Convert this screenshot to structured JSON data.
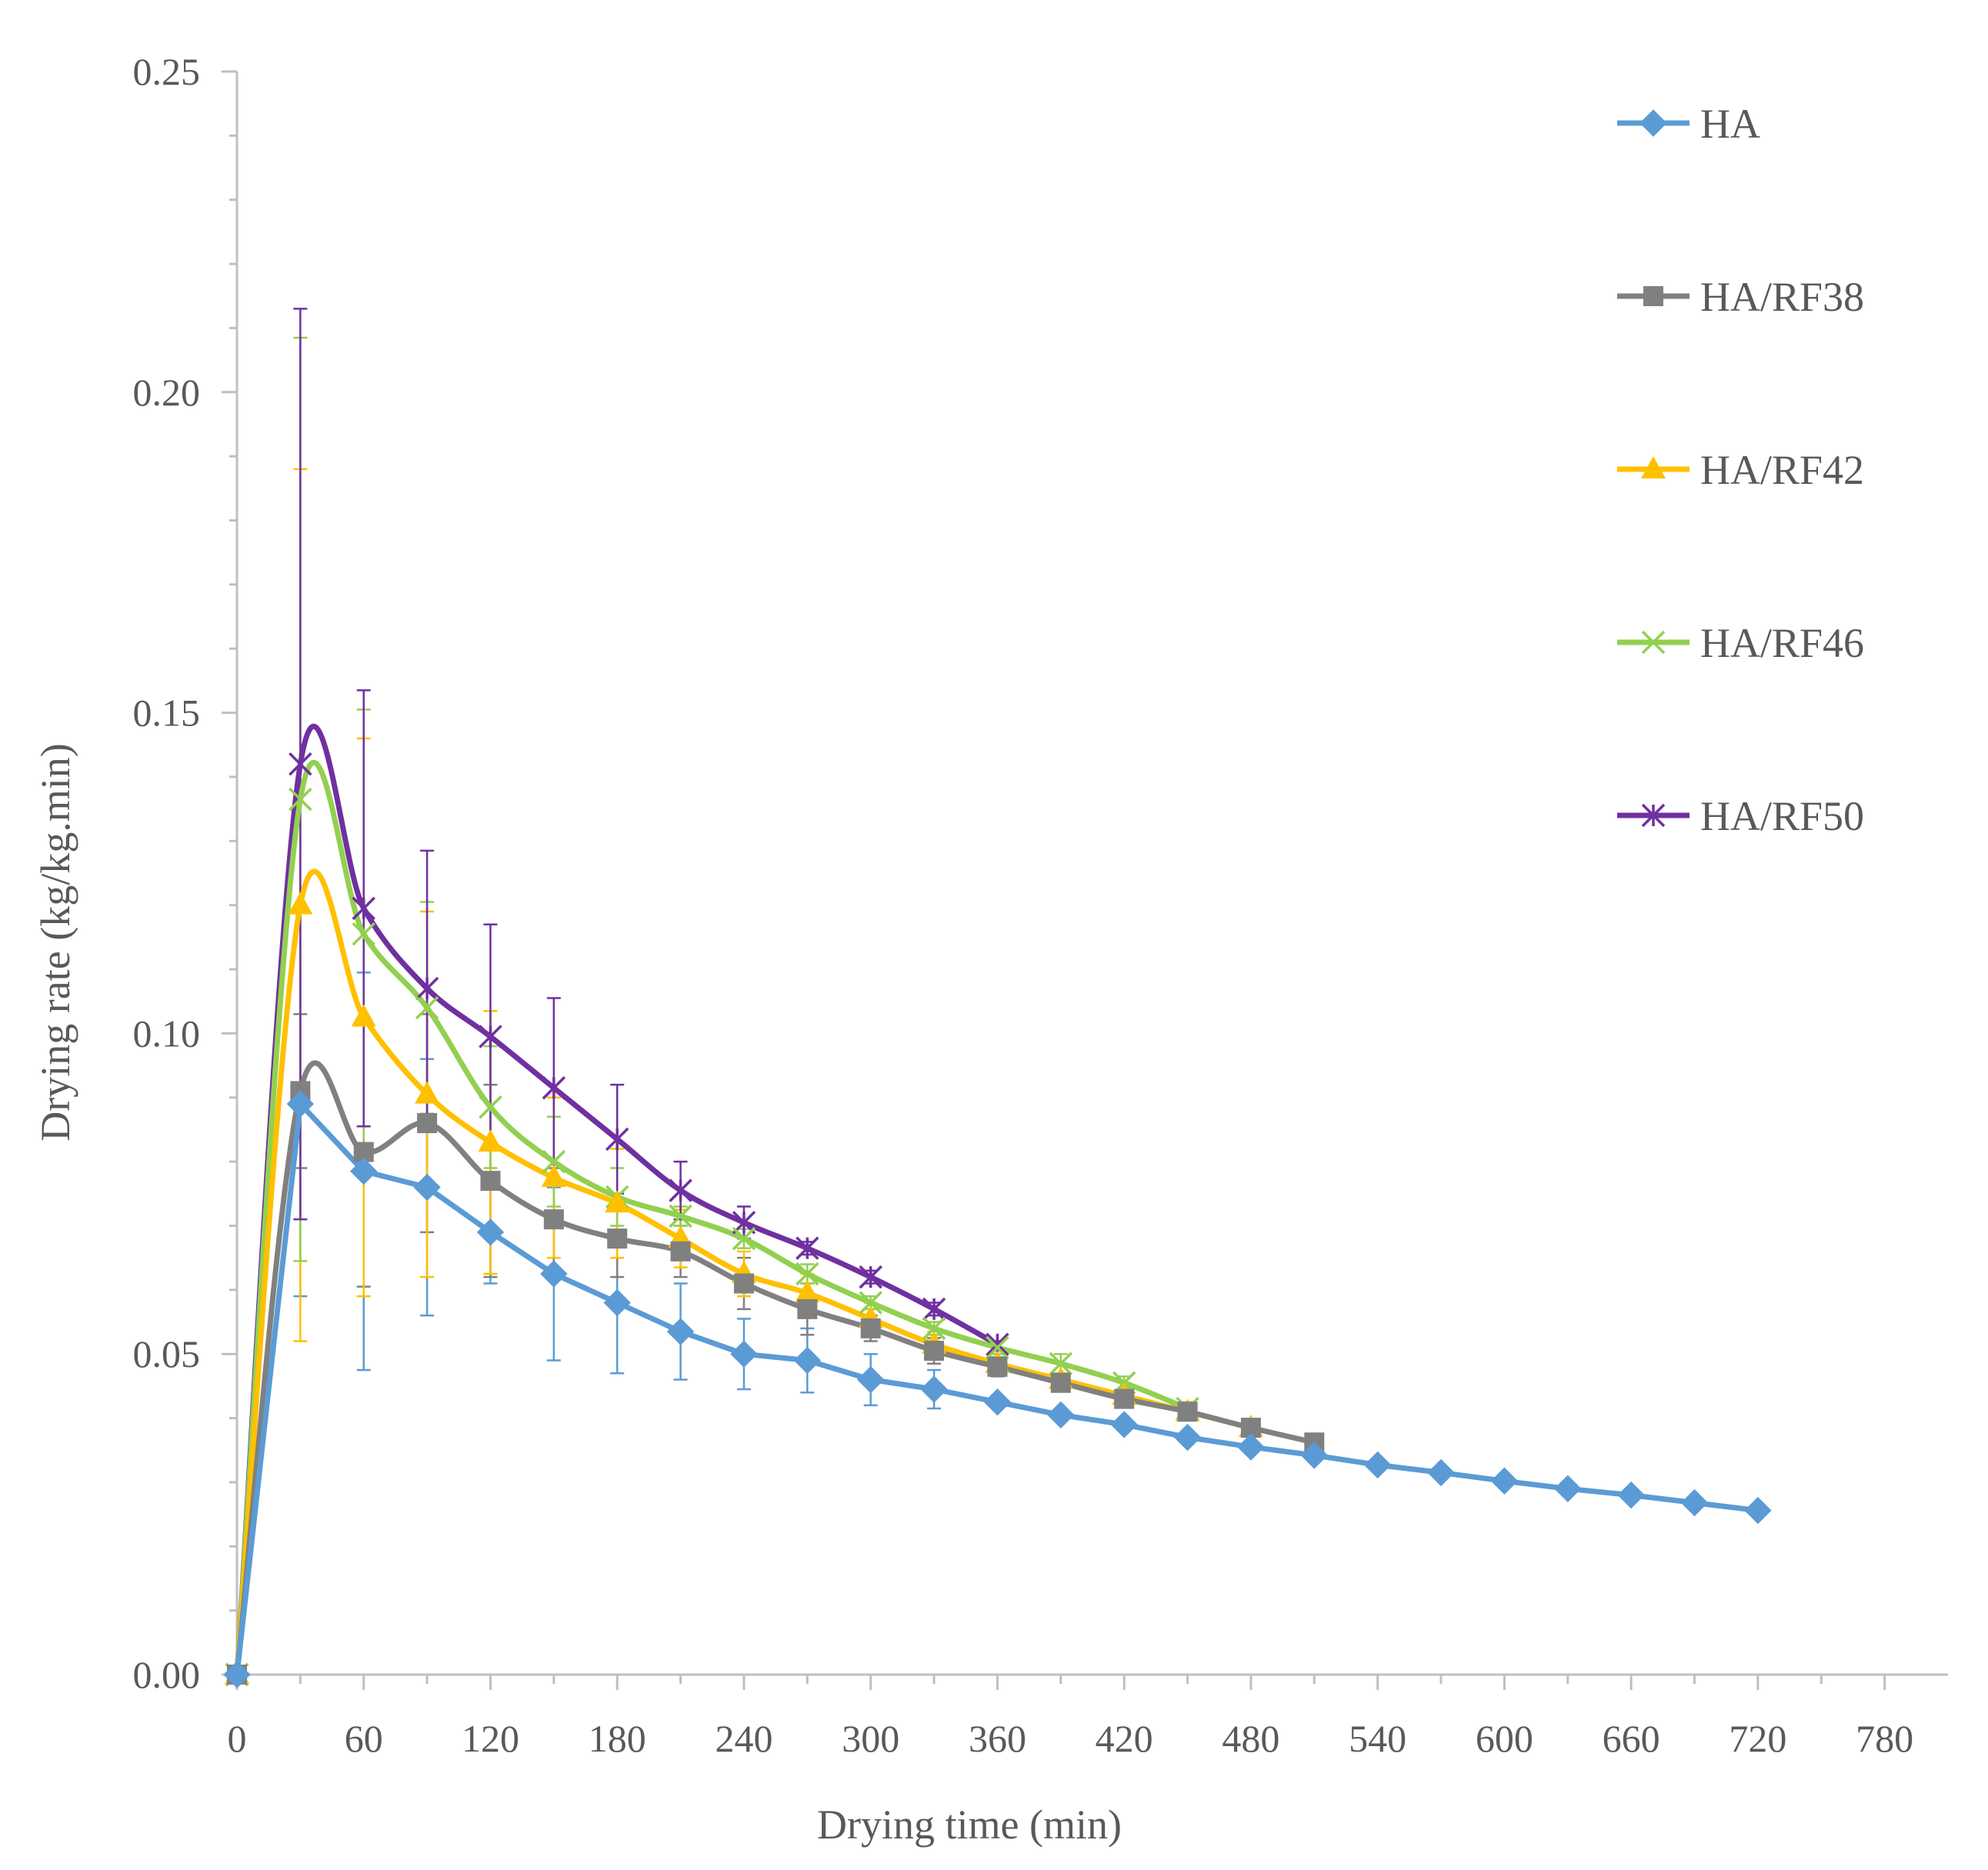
{
  "chart_data": {
    "type": "line",
    "title": "",
    "xlabel": "Drying time (min)",
    "ylabel": "Drying rate (kg/kg.min)",
    "xlim": [
      0,
      810
    ],
    "ylim": [
      0,
      0.25
    ],
    "xticks": [
      0,
      60,
      120,
      180,
      240,
      300,
      360,
      420,
      480,
      540,
      600,
      660,
      720,
      780
    ],
    "xtick_labels": [
      "0",
      "60",
      "120",
      "180",
      "240",
      "300",
      "360",
      "420",
      "480",
      "540",
      "600",
      "660",
      "720",
      "780"
    ],
    "yticks": [
      0,
      0.05,
      0.1,
      0.15,
      0.2,
      0.25
    ],
    "ytick_labels": [
      "0.00",
      "0.05",
      "0.10",
      "0.15",
      "0.20",
      "0.25"
    ],
    "grid": false,
    "legend_position": "top-right",
    "series": [
      {
        "name": "HA",
        "color": "#5b9bd5",
        "marker": "diamond",
        "smooth": false,
        "x": [
          0,
          30,
          60,
          90,
          120,
          150,
          180,
          210,
          240,
          270,
          300,
          330,
          360,
          390,
          420,
          450,
          480,
          510,
          540,
          570,
          600,
          630,
          660,
          690,
          720
        ],
        "y": [
          0.0,
          0.089,
          0.0785,
          0.076,
          0.069,
          0.0625,
          0.058,
          0.0535,
          0.05,
          0.049,
          0.046,
          0.0445,
          0.0425,
          0.0405,
          0.039,
          0.037,
          0.0355,
          0.0342,
          0.0327,
          0.0315,
          0.0302,
          0.029,
          0.028,
          0.0268,
          0.0256
        ],
        "err": [
          0,
          0.03,
          0.031,
          0.02,
          0.008,
          0.0135,
          0.011,
          0.0075,
          0.0055,
          0.005,
          0.004,
          0.003,
          0,
          0,
          0,
          0,
          0,
          0,
          0,
          0,
          0,
          0,
          0,
          0,
          0
        ]
      },
      {
        "name": "HA/RF38",
        "color": "#808080",
        "marker": "square",
        "smooth": true,
        "x": [
          0,
          30,
          60,
          90,
          120,
          150,
          180,
          210,
          240,
          270,
          300,
          330,
          360,
          390,
          420,
          450,
          480,
          510
        ],
        "y": [
          0.0,
          0.091,
          0.0815,
          0.086,
          0.077,
          0.071,
          0.068,
          0.066,
          0.061,
          0.057,
          0.054,
          0.0505,
          0.048,
          0.0455,
          0.043,
          0.041,
          0.0385,
          0.0362
        ],
        "err": [
          0,
          0.012,
          0.021,
          0.017,
          0.015,
          0.008,
          0.006,
          0.004,
          0.004,
          0.004,
          0.002,
          0.002,
          0.0015,
          0.001,
          0.001,
          0,
          0,
          0
        ]
      },
      {
        "name": "HA/RF42",
        "color": "#ffc000",
        "marker": "triangle",
        "smooth": true,
        "x": [
          0,
          30,
          60,
          90,
          120,
          150,
          180,
          210,
          240,
          270,
          300,
          330,
          360,
          390,
          420,
          450,
          480
        ],
        "y": [
          0.0,
          0.12,
          0.1025,
          0.0905,
          0.083,
          0.0775,
          0.0735,
          0.068,
          0.0625,
          0.0595,
          0.0555,
          0.0515,
          0.0485,
          0.046,
          0.0435,
          0.041,
          0.0385
        ],
        "err": [
          0,
          0.068,
          0.0435,
          0.0285,
          0.0205,
          0.0125,
          0.0085,
          0.0045,
          0.0035,
          0.003,
          0.0025,
          0.002,
          0.0015,
          0.001,
          0.001,
          0.001,
          0
        ]
      },
      {
        "name": "HA/RF46",
        "color": "#92d050",
        "marker": "x",
        "smooth": true,
        "x": [
          0,
          30,
          60,
          90,
          120,
          150,
          180,
          210,
          240,
          270,
          300,
          330,
          360,
          390,
          420,
          450
        ],
        "y": [
          0.0,
          0.1365,
          0.1155,
          0.104,
          0.0885,
          0.08,
          0.0745,
          0.0715,
          0.068,
          0.0625,
          0.058,
          0.054,
          0.051,
          0.0485,
          0.0455,
          0.0415
        ],
        "err": [
          0,
          0.072,
          0.035,
          0.0165,
          0.0095,
          0.007,
          0.0045,
          0.0015,
          0.0015,
          0.0015,
          0.001,
          0.001,
          0.001,
          0.0015,
          0.001,
          0.001
        ]
      },
      {
        "name": "HA/RF50",
        "color": "#7030a0",
        "marker": "star",
        "smooth": true,
        "x": [
          0,
          30,
          60,
          90,
          120,
          150,
          180,
          210,
          240,
          270,
          300,
          330,
          360
        ],
        "y": [
          0.0,
          0.142,
          0.1195,
          0.107,
          0.0995,
          0.0915,
          0.0835,
          0.0755,
          0.0705,
          0.0665,
          0.062,
          0.057,
          0.0515
        ],
        "err": [
          0,
          0.071,
          0.034,
          0.0215,
          0.0175,
          0.014,
          0.0085,
          0.0045,
          0.0025,
          0.001,
          0.001,
          0.001,
          0.0005
        ]
      }
    ]
  }
}
